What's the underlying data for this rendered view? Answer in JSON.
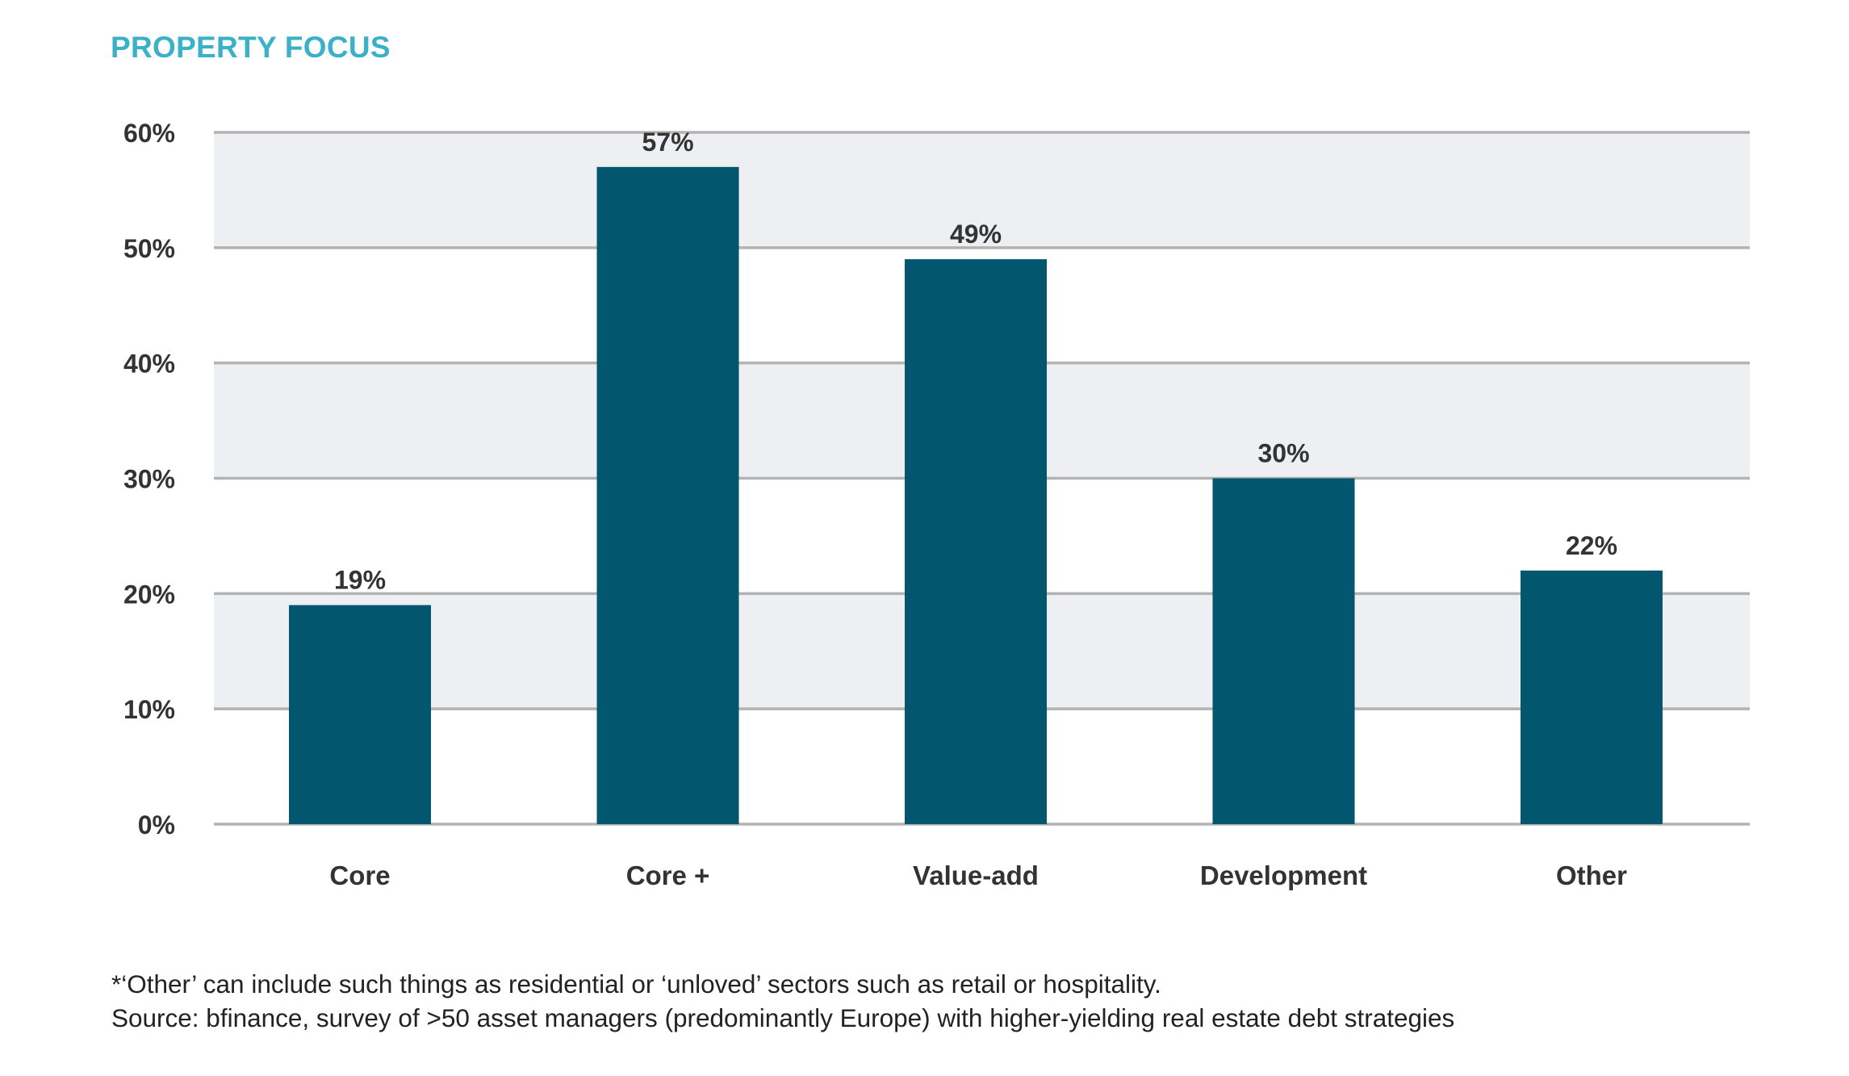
{
  "chart_data": {
    "type": "bar",
    "title": "PROPERTY FOCUS",
    "categories": [
      "Core",
      "Core +",
      "Value-add",
      "Development",
      "Other"
    ],
    "values": [
      19,
      57,
      49,
      30,
      22
    ],
    "value_labels": [
      "19%",
      "57%",
      "49%",
      "30%",
      "22%"
    ],
    "yticks": [
      0,
      10,
      20,
      30,
      40,
      50,
      60
    ],
    "ytick_labels": [
      "0%",
      "10%",
      "20%",
      "30%",
      "40%",
      "50%",
      "60%"
    ],
    "ylim": [
      0,
      60
    ],
    "xlabel": "",
    "ylabel": "",
    "grid": true,
    "legend": "none"
  },
  "footnotes": {
    "note": "*‘Other’ can include such things as residential or ‘unloved’ sectors such as retail or hospitality.",
    "source": "Source: bfinance, survey of >50 asset managers (predominantly Europe) with higher-yielding real estate debt strategies"
  },
  "colors": {
    "title": "#3bb0c9",
    "bar": "#02566e",
    "band": "#eeeff2",
    "grid": "#b3b3b3",
    "text": "#333333"
  }
}
